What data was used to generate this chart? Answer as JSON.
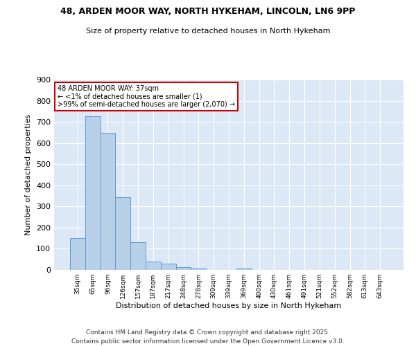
{
  "title1": "48, ARDEN MOOR WAY, NORTH HYKEHAM, LINCOLN, LN6 9PP",
  "title2": "Size of property relative to detached houses in North Hykeham",
  "xlabel": "Distribution of detached houses by size in North Hykeham",
  "ylabel": "Number of detached properties",
  "bar_labels": [
    "35sqm",
    "65sqm",
    "96sqm",
    "126sqm",
    "157sqm",
    "187sqm",
    "217sqm",
    "248sqm",
    "278sqm",
    "309sqm",
    "339sqm",
    "369sqm",
    "400sqm",
    "430sqm",
    "461sqm",
    "491sqm",
    "521sqm",
    "552sqm",
    "582sqm",
    "613sqm",
    "643sqm"
  ],
  "bar_values": [
    150,
    725,
    648,
    345,
    132,
    40,
    30,
    12,
    5,
    0,
    0,
    5,
    0,
    0,
    0,
    0,
    0,
    0,
    0,
    0,
    0
  ],
  "bar_color": "#b8d0e8",
  "bar_edge_color": "#5b9bd5",
  "background_color": "#dce8f5",
  "annotation_text": "48 ARDEN MOOR WAY: 37sqm\n← <1% of detached houses are smaller (1)\n>99% of semi-detached houses are larger (2,070) →",
  "annotation_box_color": "#ffffff",
  "annotation_border_color": "#cc0000",
  "footer1": "Contains HM Land Registry data © Crown copyright and database right 2025.",
  "footer2": "Contains public sector information licensed under the Open Government Licence v3.0.",
  "ylim": [
    0,
    900
  ],
  "yticks": [
    0,
    100,
    200,
    300,
    400,
    500,
    600,
    700,
    800,
    900
  ],
  "fig_bg": "#ffffff"
}
